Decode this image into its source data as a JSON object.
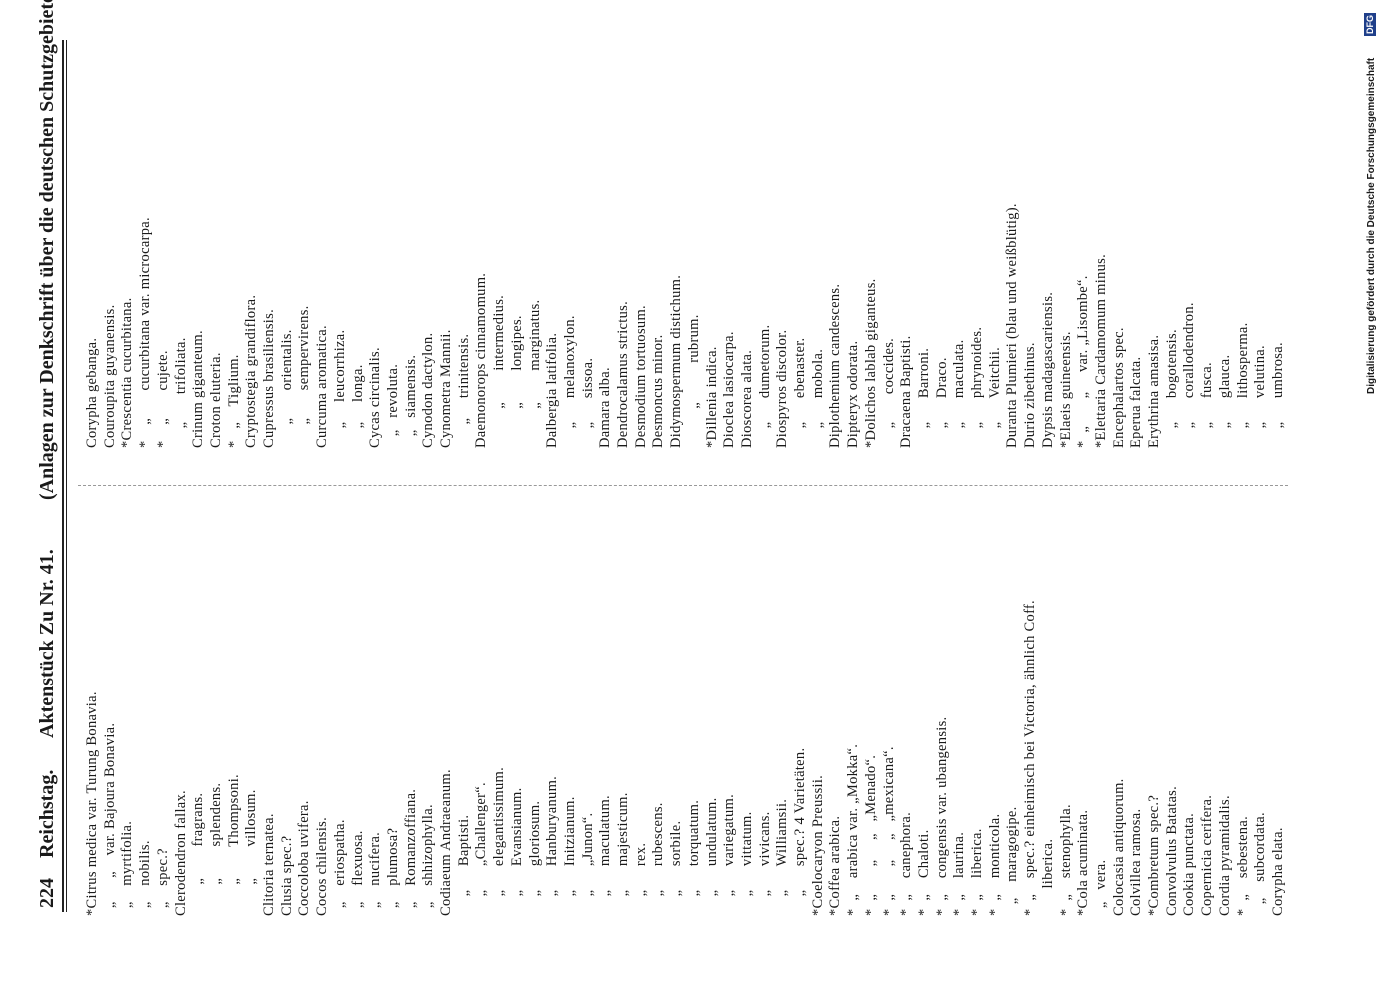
{
  "header": {
    "page_number": "224",
    "body": "Reichstag.",
    "document": "Aktenstück Zu Nr. 41.",
    "subtitle": "(Anlagen zur Denkschrift über die deutschen Schutzgebiete.)"
  },
  "columns": [
    {
      "lines": [
        "*Citrus medica var. Turung Bonavia.",
        "  „      „    var. Bajoura Bonavia.",
        "  „    myrtifolia.",
        "  „    nobilis.",
        "  „    spec.?",
        "Clerodendron fallax.",
        "        „        fragrans.",
        "        „        splendens.",
        "        „        Thompsoni.",
        "        „        villosum.",
        "Clitoria ternatea.",
        "Clusia spec.?",
        "Coccoloba uvifera.",
        "Cocos chilensis.",
        "  „    eriospatha.",
        "  „    flexuosa.",
        "  „    nucifera.",
        "  „    plumosa?",
        "  „    Romanzoffiana.",
        "  „    shhizophylla.",
        "Codiaeum Andraeanum.",
        "     „      Baptisti.",
        "     „      „Challenger“.",
        "     „      elegantissimum.",
        "     „      Evansianum.",
        "     „      gloriosum.",
        "     „      Hanburyanum.",
        "     „      Initzianum.",
        "     „      „Junon“.",
        "     „      maculatum.",
        "     „      majesticum.",
        "     „      rex.",
        "     „      rubescens.",
        "     „      sorbile.",
        "     „      torquatum.",
        "     „      undulatum.",
        "     „      variegatum.",
        "     „      vittatum.",
        "     „      vivicans.",
        "     „      Williamsii.",
        "     „      spec.? 4 Varietäten.",
        "*Coelocaryon Preussii.",
        "*Coffea arabica.",
        "*  „    arabica var. „Mokka“.",
        "*  „       „     „   „Menado“.",
        "*  „       „     „   „mexicana“.",
        "*  „    canephora.",
        "*  „    Chaloti.",
        "*  „    congensis var. ubangensis.",
        "*  „    laurina.",
        "*  „    liberica.",
        "*  „    monticola.",
        "   „    maragogipe.",
        "*  „    spec.? einheimisch bei Victoria, ähnlich Coff.",
        "       liberica.",
        "*  „    stenophylla.",
        "*Cola acuminata.",
        "  „   vera.",
        "Colocasia antiquorum.",
        "Colvillea ramosa.",
        "*Combretum spec.?",
        "Convolvulus Batatas.",
        "Cookia punctata.",
        "Copernicia cerifera.",
        "Cordia pyramidalis.",
        "*  „    sebestena.",
        "   „    subcordata.",
        "Corypha elata."
      ]
    },
    {
      "lines": [
        "Corypha gebanga.",
        "Couroupita guyanensis.",
        "*Crescentia cucurbitana.",
        "*    „       cucurbitana var. microcarpa.",
        "*    „       cujete.",
        "     „       trifoliata.",
        "Crinum giganteum.",
        "Croton eluteria.",
        "*   „    Tiglium.",
        "Cryptostegia grandiflora.",
        "Cupressus brasiliensis.",
        "      „       orientalis.",
        "      „       sempervirens.",
        "Curcuma aromatica.",
        "     „     leucorrhiza.",
        "     „     longa.",
        "Cycas circinalis.",
        "   „   revoluta.",
        "   „   siamensis.",
        "Cynodon dactylon.",
        "Cynometra Mannii.",
        "      „     trinitensis.",
        "Daemonorops cinnamomum.",
        "          „        intermedius.",
        "          „        longipes.",
        "          „        marginatus.",
        "Dalbergia latifolia.",
        "     „      melanoxylon.",
        "     „      sissoa.",
        "Damara alba.",
        "Dendrocalamus strictus.",
        "Desmodium tortuosum.",
        "Desmoncus minor.",
        "Didymospermum distichum.",
        "          „          rubrum.",
        "*Dillenia indica.",
        "Dioclea lasiocarpa.",
        "Dioscorea alata.",
        "     „      dumetorum.",
        "Diospyros discolor.",
        "     „      ebenaster.",
        "     „      mobola.",
        "Diplothemium candescens.",
        "Dipteryx odorata.",
        "*Dolichos lablab giganteus.",
        "     „       coccides.",
        "Dracaena Baptisti.",
        "     „      Barroni.",
        "     „      Draco.",
        "     „      maculata.",
        "     „      phrynoides.",
        "     „      Veitchii.",
        "Duranta Plumieri (blau und weißblütig).",
        "Durio zibethinus.",
        "Dypsis madagascariensis.",
        "*Elaeis guineensis.",
        "*  „       „     var. „Lisombe“.",
        "*Elettaria Cardamomum minus.",
        "Encephalartos spec.",
        "Eperua falcata.",
        "Erythrina amasisa.",
        "     „      bogotensis.",
        "     „      corallodendron.",
        "     „      fusca.",
        "     „      glauca.",
        "     „      lithosperma.",
        "     „      velutina.",
        "     „      umbrosa."
      ]
    }
  ],
  "margin": {
    "credit": "Digitalisierung gefördert durch die Deutsche Forschungsgemeinschaft",
    "logo": "DFG"
  }
}
